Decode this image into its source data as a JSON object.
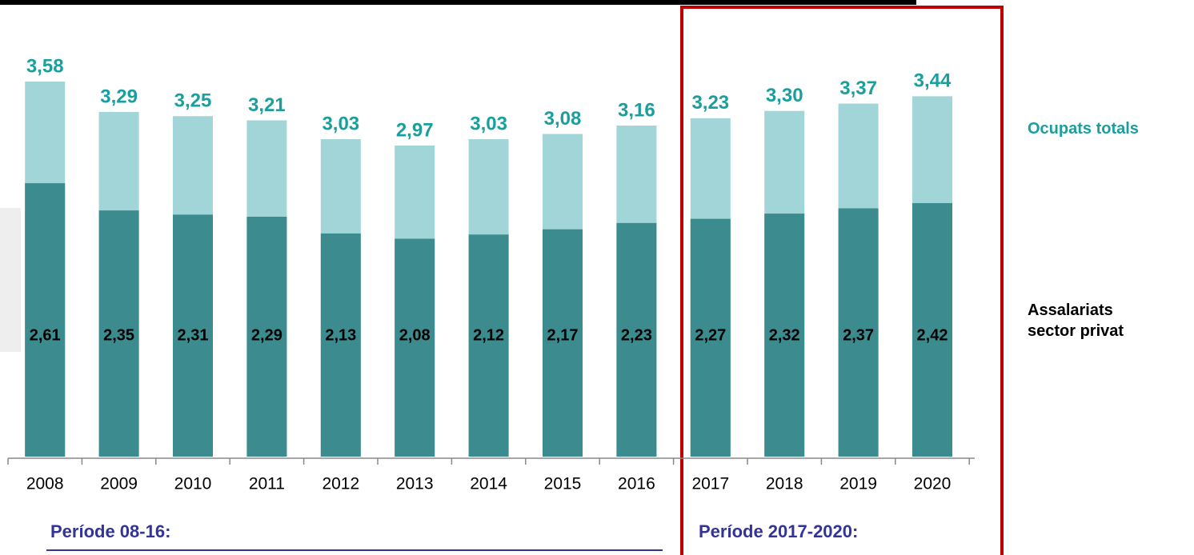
{
  "chart_data": {
    "type": "bar",
    "categories": [
      "2008",
      "2009",
      "2010",
      "2011",
      "2012",
      "2013",
      "2014",
      "2015",
      "2016",
      "2017",
      "2018",
      "2019",
      "2020"
    ],
    "series": [
      {
        "name": "Ocupats totals",
        "color": "#a2d5d8",
        "label_color": "#1a9e9e",
        "values": [
          3.58,
          3.29,
          3.25,
          3.21,
          3.03,
          2.97,
          3.03,
          3.08,
          3.16,
          3.23,
          3.3,
          3.37,
          3.44
        ],
        "value_labels": [
          "3,58",
          "3,29",
          "3,25",
          "3,21",
          "3,03",
          "2,97",
          "3,03",
          "3,08",
          "3,16",
          "3,23",
          "3,30",
          "3,37",
          "3,44"
        ]
      },
      {
        "name": "Assalariats sector privat",
        "color": "#3c8c8f",
        "label_color": "#000000",
        "values": [
          2.61,
          2.35,
          2.31,
          2.29,
          2.13,
          2.08,
          2.12,
          2.17,
          2.23,
          2.27,
          2.32,
          2.37,
          2.42
        ],
        "value_labels": [
          "2,61",
          "2,35",
          "2,31",
          "2,29",
          "2,13",
          "2,08",
          "2,12",
          "2,17",
          "2,23",
          "2,27",
          "2,32",
          "2,37",
          "2,42"
        ]
      }
    ],
    "ylim": [
      0,
      4
    ],
    "annotations": [
      "Període 08-16:",
      "Període 2017-2020:"
    ]
  }
}
